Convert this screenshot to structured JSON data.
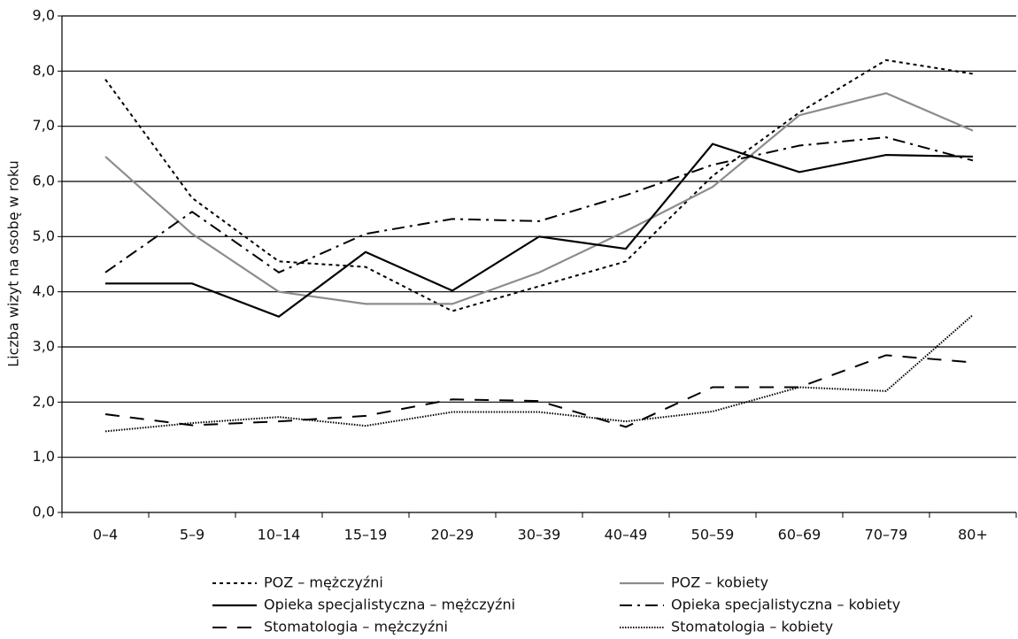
{
  "chart_data": {
    "type": "line",
    "y_label": "Liczba wizyt na osobę w roku",
    "categories": [
      "0–4",
      "5–9",
      "10–14",
      "15–19",
      "20–29",
      "30–39",
      "40–49",
      "50–59",
      "60–69",
      "70–79",
      "80+"
    ],
    "series": [
      {
        "name": "POZ – mężczyźni",
        "color": "#000000",
        "dash": "4,4",
        "width": 2,
        "values": [
          7.85,
          5.7,
          4.55,
          4.45,
          3.65,
          4.1,
          4.55,
          6.1,
          7.25,
          8.2,
          7.95
        ]
      },
      {
        "name": "POZ – kobiety",
        "color": "#8c8c8c",
        "dash": "none",
        "width": 2.2,
        "values": [
          6.45,
          5.05,
          4.0,
          3.78,
          3.78,
          4.35,
          5.1,
          5.9,
          7.2,
          7.6,
          6.92
        ]
      },
      {
        "name": "Opieka specjalistyczna – mężczyźni",
        "color": "#000000",
        "dash": "none",
        "width": 2.2,
        "values": [
          4.15,
          4.15,
          3.55,
          4.72,
          4.02,
          5.0,
          4.78,
          6.68,
          6.17,
          6.48,
          6.45
        ]
      },
      {
        "name": "Opieka specjalistyczna – kobiety",
        "color": "#000000",
        "dash": "14,6,3,6",
        "width": 2,
        "values": [
          4.35,
          5.45,
          4.35,
          5.05,
          5.32,
          5.28,
          5.75,
          6.3,
          6.65,
          6.8,
          6.38
        ]
      },
      {
        "name": "Stomatologia – mężczyźni",
        "color": "#000000",
        "dash": "16,12",
        "width": 2,
        "values": [
          1.78,
          1.58,
          1.65,
          1.75,
          2.05,
          2.02,
          1.55,
          2.27,
          2.27,
          2.85,
          2.72
        ]
      },
      {
        "name": "Stomatologia – kobiety",
        "color": "#000000",
        "dash": "1.5,1.5",
        "width": 2,
        "values": [
          1.47,
          1.62,
          1.73,
          1.57,
          1.82,
          1.82,
          1.65,
          1.83,
          2.27,
          2.2,
          3.58
        ]
      }
    ],
    "ylim": [
      0,
      9
    ],
    "yticks": [
      {
        "value": 0,
        "label": "0,0"
      },
      {
        "value": 1,
        "label": "1,0"
      },
      {
        "value": 2,
        "label": "2,0"
      },
      {
        "value": 3,
        "label": "3,0"
      },
      {
        "value": 4,
        "label": "4,0"
      },
      {
        "value": 5,
        "label": "5,0"
      },
      {
        "value": 6,
        "label": "6,0"
      },
      {
        "value": 7,
        "label": "7,0"
      },
      {
        "value": 8,
        "label": "8,0"
      },
      {
        "value": 9,
        "label": "9,0"
      }
    ],
    "grid": true
  }
}
